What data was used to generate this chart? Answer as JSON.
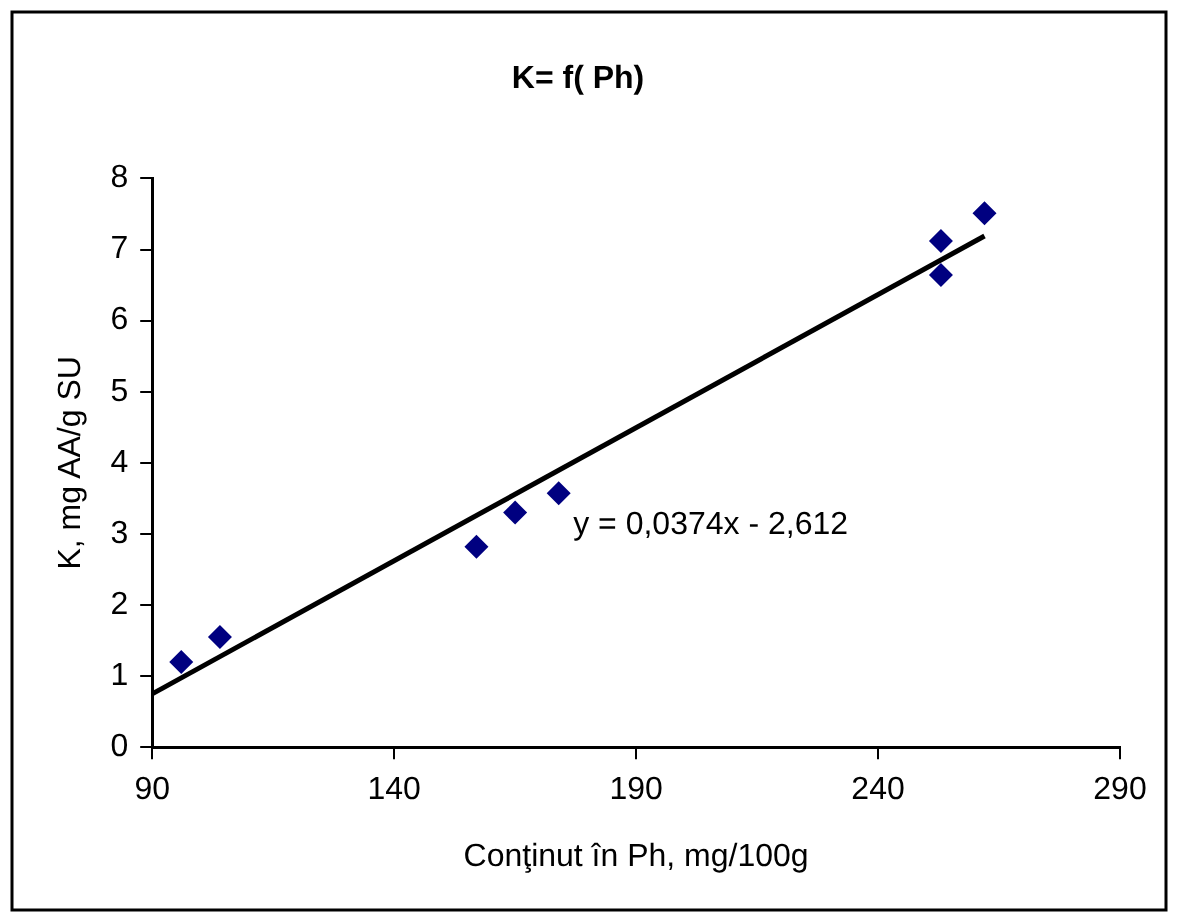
{
  "chart_data": {
    "type": "scatter",
    "title": "K= f( Ph)",
    "xlabel": "Conţinut în Ph, mg/100g",
    "ylabel": "K, mg AA/g SU",
    "series": [
      {
        "type": "scatter",
        "color": "#000080",
        "marker": "diamond",
        "x": [
          96,
          104,
          157,
          165,
          174,
          253,
          253,
          262
        ],
        "values": [
          1.2,
          1.55,
          2.82,
          3.3,
          3.57,
          7.12,
          6.64,
          7.51
        ]
      },
      {
        "type": "line",
        "color": "#000000",
        "marker": "none",
        "line_style": "solid",
        "x": [
          90,
          262
        ],
        "values": [
          0.75,
          7.19
        ]
      }
    ],
    "annotations": [
      "y = 0,0374x - 2,612"
    ],
    "xlim": [
      90,
      290
    ],
    "xticks": [
      90,
      140,
      190,
      240,
      290
    ],
    "ylim": [
      0,
      8
    ],
    "yticks": [
      0,
      1,
      2,
      3,
      4,
      5,
      6,
      7,
      8
    ],
    "grid": false,
    "legend": false
  }
}
